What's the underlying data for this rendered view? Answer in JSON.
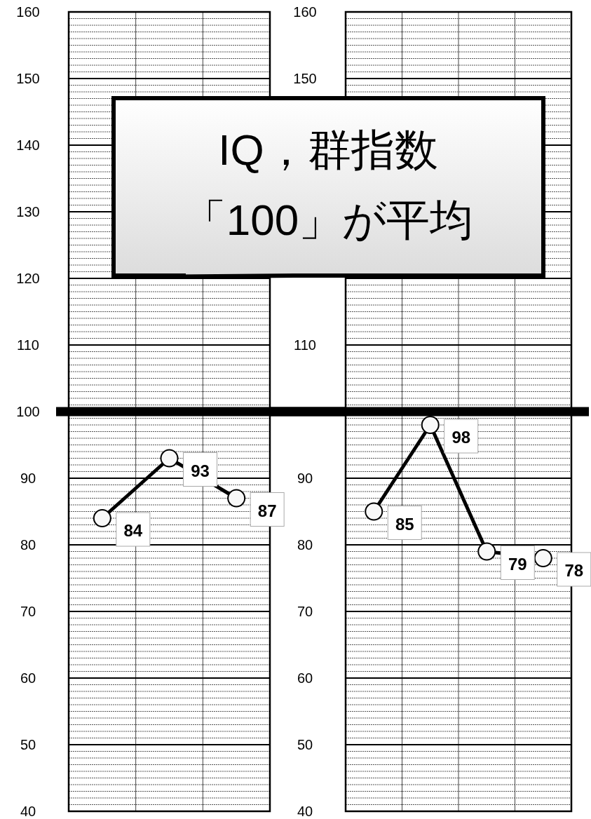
{
  "chart_data": [
    {
      "type": "line",
      "categories": [
        null,
        null,
        null
      ],
      "series": [
        {
          "color": "#000000",
          "values": [
            84,
            93,
            87
          ]
        }
      ],
      "ylim": [
        40,
        160
      ],
      "yticks": [
        40,
        50,
        60,
        70,
        80,
        90,
        100,
        110,
        120,
        130,
        140,
        150,
        160
      ],
      "grid": true,
      "marker": "circle",
      "data_labels": true,
      "ref_lines": [
        {
          "axis": "y",
          "value": 100,
          "color": "#000000"
        }
      ],
      "annotations": [
        "IQ，群指数",
        "「100」が平均"
      ]
    },
    {
      "type": "line",
      "categories": [
        null,
        null,
        null,
        null
      ],
      "series": [
        {
          "color": "#000000",
          "values": [
            85,
            98,
            79,
            78
          ]
        }
      ],
      "ylim": [
        40,
        160
      ],
      "yticks": [
        40,
        50,
        60,
        70,
        80,
        90,
        {
          "value": 100,
          "label": null
        },
        110,
        {
          "value": 120,
          "label": null
        },
        {
          "value": 130,
          "label": null
        },
        {
          "value": 140,
          "label": null
        },
        150,
        160
      ],
      "grid": true,
      "marker": "circle",
      "data_labels": true,
      "ref_lines": [
        {
          "axis": "y",
          "value": 100,
          "color": "#000000"
        }
      ]
    }
  ]
}
